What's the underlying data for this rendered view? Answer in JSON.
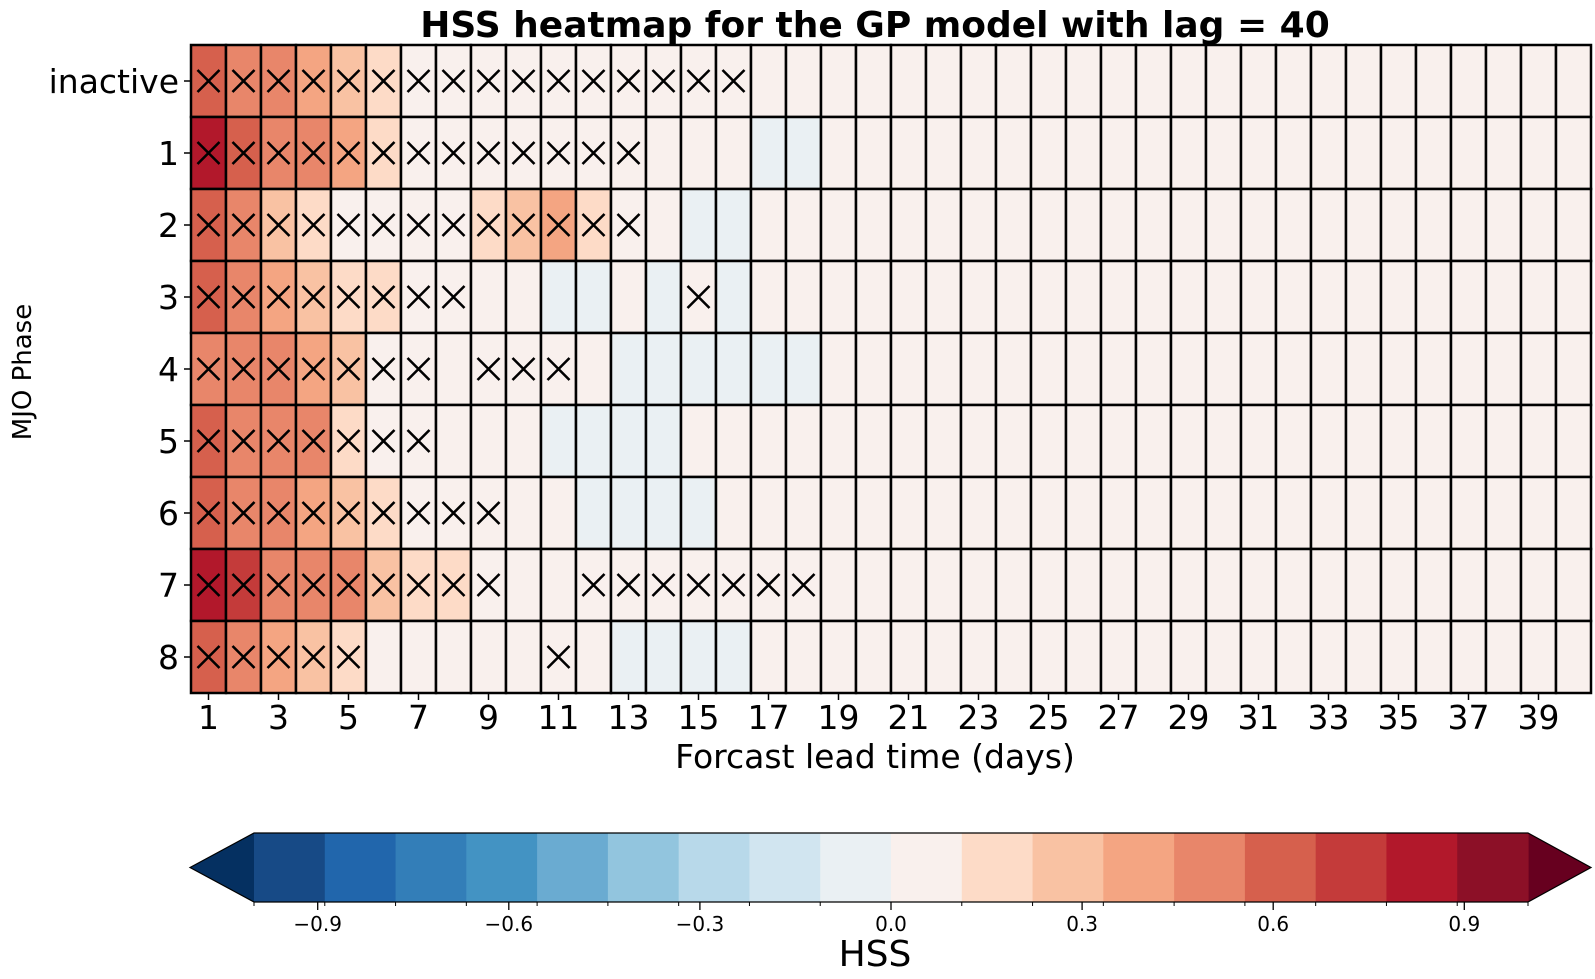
{
  "chart_data": {
    "type": "heatmap",
    "title": "HSS heatmap for the GP model with lag = 40",
    "xlabel": "Forcast lead time (days)",
    "ylabel": "MJO Phase",
    "x_categories": [
      1,
      2,
      3,
      4,
      5,
      6,
      7,
      8,
      9,
      10,
      11,
      12,
      13,
      14,
      15,
      16,
      17,
      18,
      19,
      20,
      21,
      22,
      23,
      24,
      25,
      26,
      27,
      28,
      29,
      30,
      31,
      32,
      33,
      34,
      35,
      36,
      37,
      38,
      39,
      40
    ],
    "x_tick_labels": [
      "1",
      "3",
      "5",
      "7",
      "9",
      "11",
      "13",
      "15",
      "17",
      "19",
      "21",
      "23",
      "25",
      "27",
      "29",
      "31",
      "33",
      "35",
      "37",
      "39"
    ],
    "y_categories": [
      "inactive",
      "1",
      "2",
      "3",
      "4",
      "5",
      "6",
      "7",
      "8"
    ],
    "values": [
      [
        0.65,
        0.55,
        0.45,
        0.35,
        0.25,
        0.2,
        0.1,
        0.05,
        0.05,
        0.05,
        0.05,
        0.02,
        0.02,
        0.02,
        0.02,
        0.02,
        0.02,
        0.02,
        0.02,
        0.02,
        0.02,
        0.02,
        0.02,
        0.02,
        0.02,
        0.02,
        0.02,
        0.02,
        0.02,
        0.02,
        0.02,
        0.02,
        0.02,
        0.02,
        0.02,
        0.02,
        0.02,
        0.02,
        0.02,
        0.02
      ],
      [
        0.85,
        0.65,
        0.55,
        0.45,
        0.35,
        0.15,
        0.1,
        0.05,
        0.05,
        0.05,
        0.02,
        0.02,
        0.02,
        0.02,
        0.02,
        0.02,
        -0.02,
        -0.02,
        0.02,
        0.02,
        0.02,
        0.02,
        0.02,
        0.02,
        0.02,
        0.02,
        0.02,
        0.02,
        0.02,
        0.02,
        0.02,
        0.02,
        0.02,
        0.02,
        0.02,
        0.02,
        0.02,
        0.02,
        0.02,
        0.02
      ],
      [
        0.65,
        0.45,
        0.25,
        0.15,
        0.05,
        0.05,
        0.1,
        0.1,
        0.15,
        0.25,
        0.35,
        0.15,
        0.1,
        0.02,
        -0.02,
        -0.02,
        0.02,
        0.02,
        0.02,
        0.02,
        0.02,
        0.02,
        0.02,
        0.02,
        0.02,
        0.02,
        0.02,
        0.02,
        0.02,
        0.02,
        0.02,
        0.02,
        0.02,
        0.02,
        0.02,
        0.02,
        0.02,
        0.02,
        0.02,
        0.02
      ],
      [
        0.65,
        0.55,
        0.35,
        0.25,
        0.15,
        0.15,
        0.1,
        0.05,
        0.02,
        0.02,
        -0.02,
        -0.02,
        0.02,
        -0.02,
        0.02,
        -0.02,
        0.02,
        0.02,
        0.02,
        0.02,
        0.02,
        0.02,
        0.02,
        0.02,
        0.02,
        0.02,
        0.02,
        0.02,
        0.02,
        0.02,
        0.02,
        0.02,
        0.02,
        0.02,
        0.02,
        0.02,
        0.02,
        0.02,
        0.02,
        0.02
      ],
      [
        0.55,
        0.55,
        0.45,
        0.35,
        0.25,
        0.05,
        0.05,
        0.02,
        0.05,
        0.02,
        0.05,
        0.02,
        -0.02,
        -0.02,
        -0.02,
        -0.02,
        -0.02,
        -0.02,
        0.02,
        0.02,
        0.02,
        0.02,
        0.02,
        0.02,
        0.02,
        0.02,
        0.02,
        0.02,
        0.02,
        0.02,
        0.02,
        0.02,
        0.02,
        0.02,
        0.02,
        0.02,
        0.02,
        0.02,
        0.02,
        0.02
      ],
      [
        0.65,
        0.55,
        0.55,
        0.45,
        0.15,
        0.05,
        0.05,
        0.02,
        0.02,
        0.02,
        -0.02,
        -0.02,
        -0.02,
        -0.02,
        0.02,
        0.02,
        0.02,
        0.02,
        0.02,
        0.02,
        0.02,
        0.02,
        0.02,
        0.02,
        0.02,
        0.02,
        0.02,
        0.02,
        0.02,
        0.02,
        0.02,
        0.02,
        0.02,
        0.02,
        0.02,
        0.02,
        0.02,
        0.02,
        0.02,
        0.02
      ],
      [
        0.65,
        0.45,
        0.45,
        0.35,
        0.25,
        0.15,
        0.05,
        0.05,
        0.05,
        0.02,
        0.02,
        -0.02,
        -0.02,
        -0.02,
        -0.02,
        0.02,
        0.02,
        0.02,
        0.02,
        0.02,
        0.02,
        0.02,
        0.02,
        0.02,
        0.02,
        0.02,
        0.02,
        0.02,
        0.02,
        0.02,
        0.02,
        0.02,
        0.02,
        0.02,
        0.02,
        0.02,
        0.02,
        0.02,
        0.02,
        0.02
      ],
      [
        0.85,
        0.75,
        0.55,
        0.55,
        0.45,
        0.25,
        0.15,
        0.15,
        0.05,
        0.02,
        0.02,
        0.05,
        0.05,
        0.05,
        0.05,
        0.05,
        0.05,
        0.05,
        0.02,
        0.02,
        0.02,
        0.02,
        0.02,
        0.02,
        0.02,
        0.02,
        0.02,
        0.02,
        0.02,
        0.02,
        0.02,
        0.02,
        0.02,
        0.02,
        0.02,
        0.02,
        0.02,
        0.02,
        0.02,
        0.02
      ],
      [
        0.65,
        0.55,
        0.35,
        0.25,
        0.15,
        0.02,
        0.02,
        0.02,
        0.02,
        0.02,
        0.02,
        0.02,
        -0.02,
        -0.02,
        -0.02,
        -0.02,
        0.02,
        0.02,
        0.02,
        0.02,
        0.02,
        0.02,
        0.02,
        0.02,
        0.02,
        0.02,
        0.02,
        0.02,
        0.02,
        0.02,
        0.02,
        0.02,
        0.02,
        0.02,
        0.02,
        0.02,
        0.02,
        0.02,
        0.02,
        0.02
      ]
    ],
    "significant_counts": [
      16,
      13,
      13,
      8,
      7,
      7,
      9,
      18,
      5
    ],
    "significant_extra": {
      "3": [
        15
      ],
      "4": [
        9,
        10,
        11
      ],
      "7": [
        12,
        13,
        14,
        15,
        16,
        17,
        18
      ],
      "8": [
        11
      ]
    },
    "significant_gaps": {
      "4": [
        8
      ],
      "7": [
        10,
        11
      ]
    },
    "colorbar": {
      "label": "HSS",
      "vmin": -1.0,
      "vmax": 1.0,
      "extend": "both",
      "tick_values": [
        -0.9,
        -0.6,
        -0.3,
        0.0,
        0.3,
        0.6,
        0.9
      ],
      "tick_labels": [
        "−0.9",
        "−0.6",
        "−0.3",
        "0.0",
        "0.3",
        "0.6",
        "0.9"
      ],
      "bin_colors": [
        "#174a86",
        "#2166ac",
        "#337eb8",
        "#4393c3",
        "#6aabd1",
        "#92c5de",
        "#b8d9ea",
        "#d1e5f0",
        "#eaf0f3",
        "#f9f0ed",
        "#fddbc7",
        "#f9c2a3",
        "#f4a582",
        "#e8866a",
        "#d6604d",
        "#c43b3a",
        "#b2182b",
        "#8c1027"
      ],
      "low_extend_color": "#053061",
      "high_extend_color": "#67001f"
    }
  }
}
